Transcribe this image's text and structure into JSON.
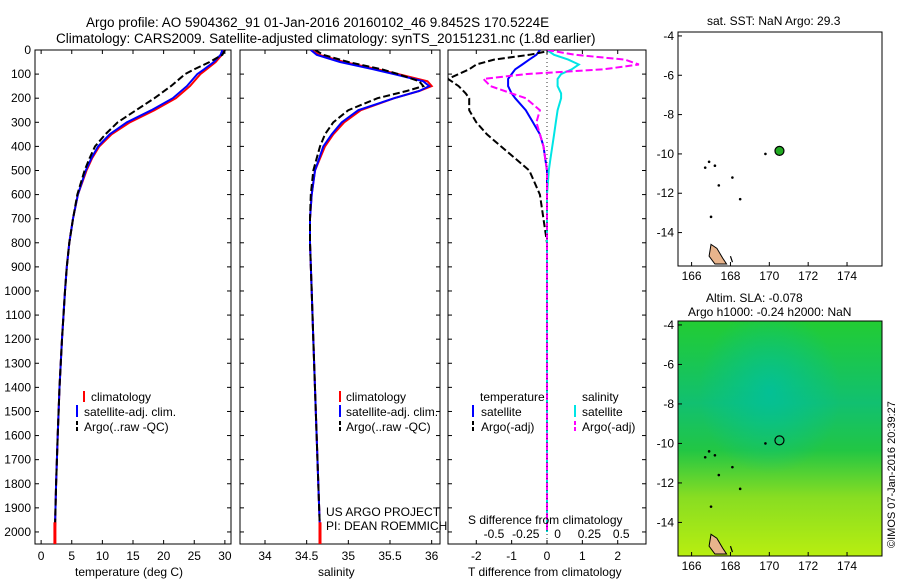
{
  "header": {
    "line1": "Argo profile: AO 5904362_91 01-Jan-2016 20160102_46 9.8452S 170.5224E",
    "line2": "Climatology: CARS2009. Satellite-adjusted climatology: synTS_20151231.nc (1.8d earlier)"
  },
  "colors": {
    "climatology": "#ff0000",
    "satellite_temp": "#0000ff",
    "argo": "#000000",
    "satellite_sal": "#00e5e5",
    "argo_sal_diff": "#ff00ff",
    "map_dot": "#22aa22",
    "land": "#e8b48c"
  },
  "credit": "©IMOS 07-Jan-2016 20:39:27",
  "chart_data": [
    {
      "type": "line",
      "name": "temperature-profile",
      "xlabel": "temperature (deg C)",
      "ylabel": "depth",
      "xlim": [
        -1,
        31
      ],
      "ylim": [
        2050,
        0
      ],
      "xticks": [
        0,
        5,
        10,
        15,
        20,
        25,
        30
      ],
      "yticks": [
        0,
        100,
        200,
        300,
        400,
        500,
        600,
        700,
        800,
        900,
        1000,
        1100,
        1200,
        1300,
        1400,
        1500,
        1600,
        1700,
        1800,
        1900,
        2000
      ],
      "legend": [
        "climatology",
        "satellite-adj. clim.",
        "Argo(..raw -QC)"
      ],
      "depth": [
        0,
        20,
        50,
        80,
        100,
        150,
        200,
        250,
        300,
        350,
        400,
        450,
        500,
        600,
        700,
        800,
        900,
        1000,
        1200,
        1400,
        1600,
        1800,
        2000
      ],
      "series": [
        {
          "name": "climatology",
          "values": [
            29.8,
            29.5,
            28.5,
            27.0,
            26.0,
            24.3,
            22.0,
            18.5,
            14.5,
            11.5,
            9.5,
            8.3,
            7.4,
            6.0,
            5.2,
            4.6,
            4.2,
            3.9,
            3.4,
            3.0,
            2.7,
            2.45,
            2.25
          ]
        },
        {
          "name": "satellite-adj. clim.",
          "values": [
            29.6,
            29.3,
            28.2,
            26.6,
            25.5,
            23.8,
            21.5,
            18.0,
            14.0,
            11.2,
            9.3,
            8.2,
            7.3,
            6.0,
            5.2,
            4.6,
            4.2,
            3.9,
            3.4,
            3.0,
            2.7,
            2.45,
            2.25
          ]
        },
        {
          "name": "Argo(..raw -QC)",
          "values": [
            30.0,
            29.6,
            27.5,
            25.0,
            23.5,
            21.2,
            18.5,
            15.5,
            12.5,
            10.5,
            8.8,
            7.9,
            7.1,
            5.9,
            5.2,
            4.6,
            4.2,
            3.9,
            3.4,
            3.0,
            2.7,
            2.45,
            2.25
          ]
        }
      ]
    },
    {
      "type": "line",
      "name": "salinity-profile",
      "xlabel": "salinity",
      "xlim": [
        33.7,
        36.1
      ],
      "ylim": [
        2050,
        0
      ],
      "xticks": [
        34,
        34.5,
        35,
        35.5,
        36
      ],
      "legend": [
        "climatology",
        "satellite-adj. clim.",
        "Argo(..raw -QC)"
      ],
      "annotation": [
        "US ARGO PROJECT",
        "PI: DEAN ROEMMICH"
      ],
      "depth": [
        0,
        20,
        50,
        80,
        100,
        130,
        150,
        170,
        200,
        250,
        300,
        350,
        400,
        500,
        600,
        700,
        800,
        1000,
        1200,
        1500,
        1800,
        2000
      ],
      "series": [
        {
          "name": "climatology",
          "values": [
            34.55,
            34.65,
            34.95,
            35.35,
            35.6,
            35.95,
            36.0,
            35.85,
            35.55,
            35.15,
            34.95,
            34.82,
            34.72,
            34.6,
            34.56,
            34.54,
            34.54,
            34.56,
            34.58,
            34.61,
            34.64,
            34.66
          ]
        },
        {
          "name": "satellite-adj. clim.",
          "values": [
            34.55,
            34.62,
            34.9,
            35.3,
            35.55,
            35.9,
            35.97,
            35.85,
            35.55,
            35.12,
            34.92,
            34.8,
            34.7,
            34.6,
            34.56,
            34.54,
            34.54,
            34.56,
            34.58,
            34.61,
            34.64,
            34.66
          ]
        },
        {
          "name": "Argo(..raw -QC)",
          "values": [
            34.6,
            34.7,
            35.0,
            35.4,
            35.6,
            35.85,
            35.9,
            35.7,
            35.35,
            35.0,
            34.82,
            34.72,
            34.66,
            34.58,
            34.55,
            34.54,
            34.54,
            34.56,
            34.58,
            34.61,
            34.64,
            34.66
          ]
        }
      ]
    },
    {
      "type": "line",
      "name": "difference-profile",
      "xlabel": "T difference from climatology",
      "xlabel_top": "S difference from climatology",
      "xlim": [
        -2.8,
        2.8
      ],
      "ylim": [
        2050,
        0
      ],
      "xticks": [
        -2,
        -1,
        0,
        1,
        2
      ],
      "xtick_labels_top": [
        "-0.5",
        "-0.25",
        "0",
        "0.25",
        "0.5"
      ],
      "legend_temperature_title": "temperature",
      "legend_salinity_title": "salinity",
      "legend": [
        "satellite",
        "Argo(-adj)",
        "satellite",
        "Argo(-adj)"
      ],
      "depth": [
        0,
        20,
        40,
        60,
        80,
        100,
        120,
        150,
        180,
        200,
        250,
        300,
        350,
        400,
        450,
        500,
        600,
        800,
        1000,
        1500,
        2000
      ],
      "series": [
        {
          "name": "temperature satellite",
          "values": [
            -0.2,
            -0.3,
            -0.5,
            -0.7,
            -0.9,
            -1.0,
            -1.1,
            -1.1,
            -1.0,
            -0.9,
            -0.6,
            -0.4,
            -0.2,
            -0.1,
            -0.05,
            0,
            0,
            0,
            0,
            0,
            0
          ]
        },
        {
          "name": "temperature Argo(-adj)",
          "values": [
            0.2,
            -0.5,
            -1.5,
            -2.0,
            -2.2,
            -2.5,
            -2.8,
            -2.5,
            -2.3,
            -2.2,
            -2.2,
            -2.0,
            -1.7,
            -1.3,
            -0.9,
            -0.5,
            -0.2,
            0,
            0,
            0,
            0
          ]
        },
        {
          "name": "salinity satellite",
          "values": [
            0,
            0.2,
            0.6,
            0.9,
            0.7,
            0.4,
            0.3,
            0.3,
            0.4,
            0.4,
            0.3,
            0.25,
            0.2,
            0.15,
            0.1,
            0.05,
            0,
            0,
            0,
            0,
            0
          ]
        },
        {
          "name": "salinity Argo(-adj)",
          "values": [
            0,
            0.8,
            2.2,
            2.6,
            1.6,
            -0.6,
            -1.8,
            -1.6,
            -1.0,
            -0.6,
            -0.2,
            -0.3,
            -0.2,
            -0.1,
            -0.05,
            0,
            0,
            0,
            0,
            0,
            0
          ]
        }
      ]
    },
    {
      "type": "scatter",
      "name": "sst-map",
      "title": "sat. SST: NaN Argo: 29.3",
      "xlim": [
        165.3,
        175.8
      ],
      "ylim": [
        -15.7,
        -3.8
      ],
      "xticks": [
        166,
        168,
        170,
        172,
        174
      ],
      "yticks": [
        -4,
        -6,
        -8,
        -10,
        -12,
        -14
      ],
      "points": [
        {
          "x": 170.5224,
          "y": -9.8452
        }
      ]
    },
    {
      "type": "heatmap",
      "name": "sla-map",
      "title_line1": "Altim. SLA: -0.078",
      "title_line2": "Argo h1000: -0.24 h2000: NaN",
      "xlim": [
        165.3,
        175.8
      ],
      "ylim": [
        -15.7,
        -3.8
      ],
      "xticks": [
        166,
        168,
        170,
        172,
        174
      ],
      "yticks": [
        -4,
        -6,
        -8,
        -10,
        -12,
        -14
      ],
      "points": [
        {
          "x": 170.5224,
          "y": -9.8452
        }
      ]
    }
  ]
}
